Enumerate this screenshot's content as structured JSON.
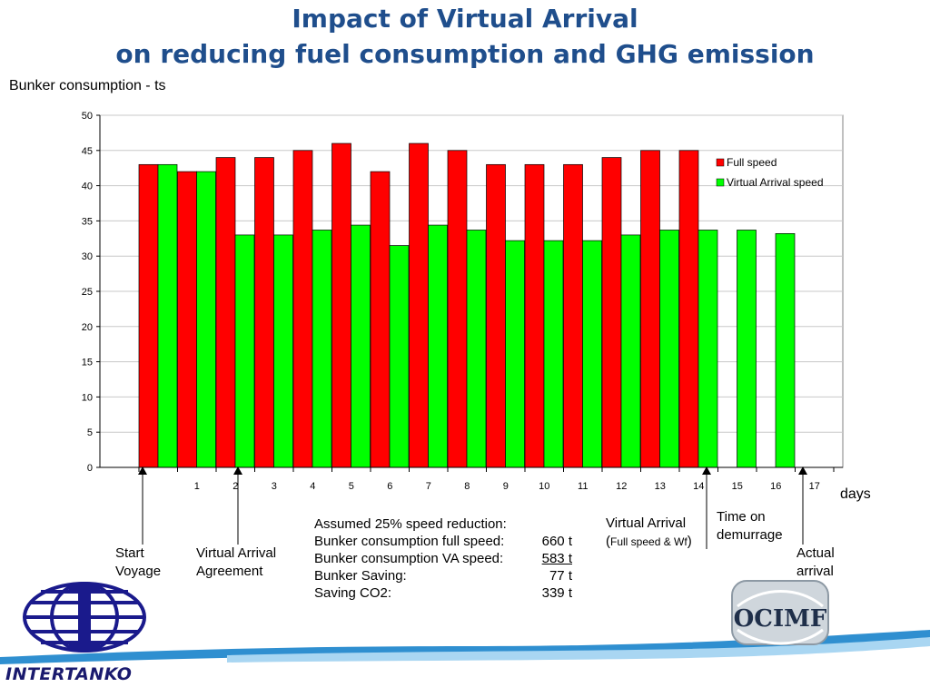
{
  "title": {
    "line1": "Impact of Virtual Arrival",
    "line2": "on reducing fuel consumption and GHG emission"
  },
  "colors": {
    "title": "#1f4e8c",
    "full_speed": "#ff0000",
    "virtual_arrival": "#00ff00",
    "logo_blue": "#1a1a8c"
  },
  "chart_data": {
    "type": "bar",
    "ylabel": "Bunker consumption - ts",
    "xlabel": "days",
    "ylim": [
      0,
      50
    ],
    "yticks": [
      0,
      5,
      10,
      15,
      20,
      25,
      30,
      35,
      40,
      45,
      50
    ],
    "grid": true,
    "legend_position": "top-right",
    "categories": [
      "",
      "1",
      "2",
      "3",
      "4",
      "5",
      "6",
      "7",
      "8",
      "9",
      "10",
      "11",
      "12",
      "13",
      "14",
      "15",
      "16",
      "17"
    ],
    "series": [
      {
        "name": "Full speed",
        "color": "#ff0000",
        "values": [
          43,
          42,
          44,
          44,
          45,
          46,
          42,
          46,
          45,
          43,
          43,
          43,
          44,
          45,
          45,
          null,
          null,
          null
        ]
      },
      {
        "name": "Virtual Arrival speed",
        "color": "#00ff00",
        "values": [
          43,
          42,
          33,
          33,
          33.7,
          34.4,
          31.5,
          34.4,
          33.7,
          32.2,
          32.2,
          32.2,
          33,
          33.7,
          33.7,
          33.7,
          33.2,
          null
        ]
      }
    ]
  },
  "annotations": {
    "start_voyage": "Start\nVoyage",
    "va_agreement": "Virtual Arrival\nAgreement",
    "virtual_arrival_label": "Virtual Arrival",
    "virtual_arrival_sub_open": "(",
    "virtual_arrival_sub": "Full speed  & Wf",
    "virtual_arrival_sub_close": ")",
    "time_on_demurrage": "Time on\ndemurrage",
    "actual_arrival": "Actual\narrival"
  },
  "notes": {
    "heading": "Assumed 25% speed reduction:",
    "rows": [
      {
        "label": "Bunker consumption full speed:",
        "value": "660 t"
      },
      {
        "label": "Bunker consumption VA speed:",
        "value": "583 t"
      },
      {
        "label": "Bunker Saving:",
        "value": "77 t"
      },
      {
        "label": "Saving CO2:",
        "value": "339 t"
      }
    ]
  },
  "logos": {
    "left": "INTERTANKO",
    "right": "OCIMF"
  }
}
